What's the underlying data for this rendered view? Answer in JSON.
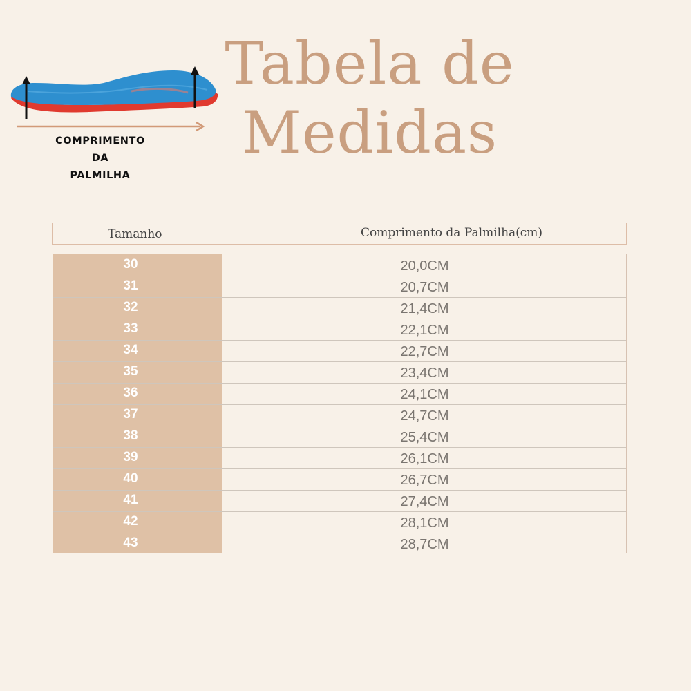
{
  "figure": {
    "caption_lines": [
      "COMPRIMENTO",
      "DA",
      "PALMILHA"
    ],
    "icon": "insole-icon",
    "colors": {
      "insole_top": "#2e8fcf",
      "insole_base": "#e03a2f",
      "arrow": "#d29a78"
    }
  },
  "title": {
    "line1": "Tabela de",
    "line2": "Medidas"
  },
  "table": {
    "headers": {
      "size": "Tamanho",
      "length": "Comprimento da Palmilha(cm)"
    },
    "rows": [
      {
        "size": "30",
        "length": "20,0CM"
      },
      {
        "size": "31",
        "length": "20,7CM"
      },
      {
        "size": "32",
        "length": "21,4CM"
      },
      {
        "size": "33",
        "length": "22,1CM"
      },
      {
        "size": "34",
        "length": "22,7CM"
      },
      {
        "size": "35",
        "length": "23,4CM"
      },
      {
        "size": "36",
        "length": "24,1CM"
      },
      {
        "size": "37",
        "length": "24,7CM"
      },
      {
        "size": "38",
        "length": "25,4CM"
      },
      {
        "size": "39",
        "length": "26,1CM"
      },
      {
        "size": "40",
        "length": "26,7CM"
      },
      {
        "size": "41",
        "length": "27,4CM"
      },
      {
        "size": "42",
        "length": "28,1CM"
      },
      {
        "size": "43",
        "length": "28,7CM"
      }
    ]
  },
  "colors": {
    "background": "#f8f1e8",
    "accent": "#c99f80",
    "size_column": "#dfc1a6"
  }
}
